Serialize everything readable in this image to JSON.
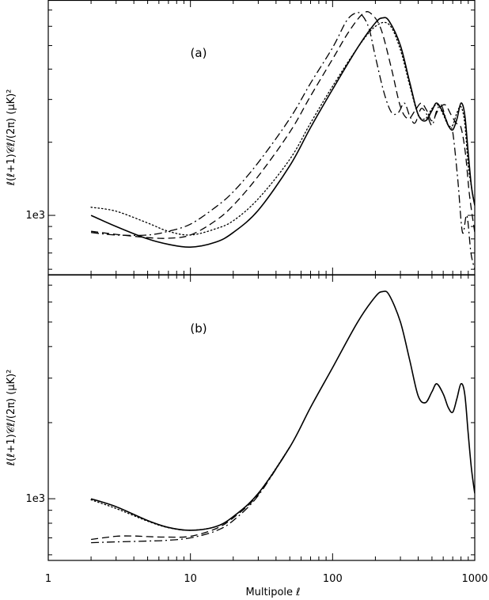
{
  "xlabel": "Multipole ℓ",
  "x_tick_labels": [
    "1",
    "10",
    "100",
    "1000"
  ],
  "chart_data": [
    {
      "type": "line",
      "panel_label": "(a)",
      "ylabel": "ℓ(ℓ+1)𝒞ℓ/(2π)  (μK)²",
      "xscale": "log",
      "yscale": "log",
      "xlim": [
        1,
        1000
      ],
      "ylim": [
        570,
        7700
      ],
      "y_tick_labels": [
        {
          "value": 1000,
          "label": "1e3"
        }
      ],
      "grid": false,
      "series": [
        {
          "style": "solid",
          "x": [
            2,
            3,
            5,
            7,
            10,
            15,
            20,
            30,
            50,
            70,
            100,
            150,
            200,
            225,
            250,
            300,
            350,
            400,
            450,
            500,
            540,
            600,
            650,
            700,
            750,
            800,
            850,
            900,
            950,
            1000
          ],
          "y": [
            1000,
            900,
            800,
            760,
            740,
            775,
            850,
            1050,
            1600,
            2300,
            3300,
            4900,
            6200,
            6500,
            6300,
            5000,
            3500,
            2600,
            2450,
            2700,
            2900,
            2650,
            2350,
            2250,
            2500,
            2900,
            2600,
            1800,
            1300,
            1100
          ]
        },
        {
          "style": "dotted",
          "x": [
            2,
            3,
            5,
            7,
            10,
            15,
            20,
            30,
            50,
            70,
            100,
            150,
            200,
            250,
            300,
            350,
            400,
            450,
            500,
            550,
            600,
            650,
            700,
            750,
            800,
            850,
            900,
            950,
            1000
          ],
          "y": [
            1080,
            1040,
            930,
            860,
            830,
            880,
            950,
            1170,
            1700,
            2400,
            3400,
            4900,
            6000,
            6100,
            4800,
            3400,
            2600,
            2500,
            2750,
            2850,
            2600,
            2350,
            2350,
            2650,
            2800,
            2400,
            1600,
            1300,
            1100
          ]
        },
        {
          "style": "dashed",
          "x": [
            2,
            3,
            5,
            7,
            10,
            15,
            20,
            30,
            50,
            70,
            100,
            130,
            165,
            190,
            220,
            260,
            300,
            340,
            380,
            420,
            460,
            500,
            560,
            620,
            680,
            740,
            800,
            860,
            920,
            1000
          ],
          "y": [
            860,
            835,
            810,
            805,
            830,
            950,
            1100,
            1450,
            2200,
            3100,
            4400,
            5700,
            6800,
            6700,
            5800,
            4000,
            2800,
            2500,
            2700,
            2900,
            2700,
            2450,
            2750,
            2850,
            2600,
            2400,
            2300,
            1800,
            1200,
            850
          ]
        },
        {
          "style": "dashdot",
          "x": [
            2,
            3,
            5,
            7,
            10,
            15,
            20,
            30,
            50,
            70,
            100,
            125,
            145,
            160,
            180,
            200,
            230,
            260,
            290,
            320,
            350,
            380,
            420,
            460,
            500,
            540,
            580,
            620,
            660,
            700,
            760,
            820,
            880,
            940,
            1000
          ],
          "y": [
            850,
            830,
            830,
            860,
            920,
            1080,
            1250,
            1650,
            2500,
            3500,
            4900,
            6300,
            6800,
            6700,
            5900,
            4500,
            3200,
            2650,
            2650,
            2900,
            2550,
            2400,
            2750,
            2600,
            2350,
            2700,
            2850,
            2550,
            2300,
            2200,
            1400,
            850,
            1000,
            700,
            600
          ]
        }
      ]
    },
    {
      "type": "line",
      "panel_label": "(b)",
      "ylabel": "ℓ(ℓ+1)𝒞ℓ/(2π)  (μK)²",
      "xscale": "log",
      "yscale": "log",
      "xlim": [
        1,
        1000
      ],
      "ylim": [
        570,
        7700
      ],
      "y_tick_labels": [
        {
          "value": 1000,
          "label": "1e3"
        }
      ],
      "grid": false,
      "series": [
        {
          "style": "solid",
          "x": [
            2,
            3,
            5,
            7,
            10,
            15,
            20,
            30,
            50,
            70,
            100,
            150,
            200,
            225,
            250,
            300,
            350,
            400,
            450,
            500,
            540,
            600,
            650,
            700,
            750,
            800,
            850,
            900,
            950,
            1000
          ],
          "y": [
            1000,
            930,
            820,
            770,
            750,
            775,
            850,
            1050,
            1600,
            2300,
            3300,
            5000,
            6300,
            6600,
            6400,
            5000,
            3500,
            2550,
            2400,
            2650,
            2850,
            2600,
            2300,
            2200,
            2500,
            2850,
            2600,
            1800,
            1300,
            1050
          ]
        },
        {
          "style": "dotted",
          "x": [
            2,
            3,
            5,
            7,
            10,
            15,
            20,
            30,
            50
          ],
          "y": [
            990,
            915,
            815,
            768,
            750,
            775,
            850,
            1050,
            1600
          ]
        },
        {
          "style": "dashed",
          "x": [
            2,
            3,
            4,
            5,
            7,
            10,
            15,
            20,
            30,
            50
          ],
          "y": [
            690,
            710,
            712,
            708,
            705,
            710,
            760,
            840,
            1040,
            1600
          ]
        },
        {
          "style": "dashdot",
          "x": [
            2,
            3,
            5,
            7,
            10,
            15,
            20,
            30,
            50
          ],
          "y": [
            670,
            675,
            680,
            685,
            700,
            745,
            820,
            1030,
            1600
          ]
        }
      ]
    }
  ]
}
